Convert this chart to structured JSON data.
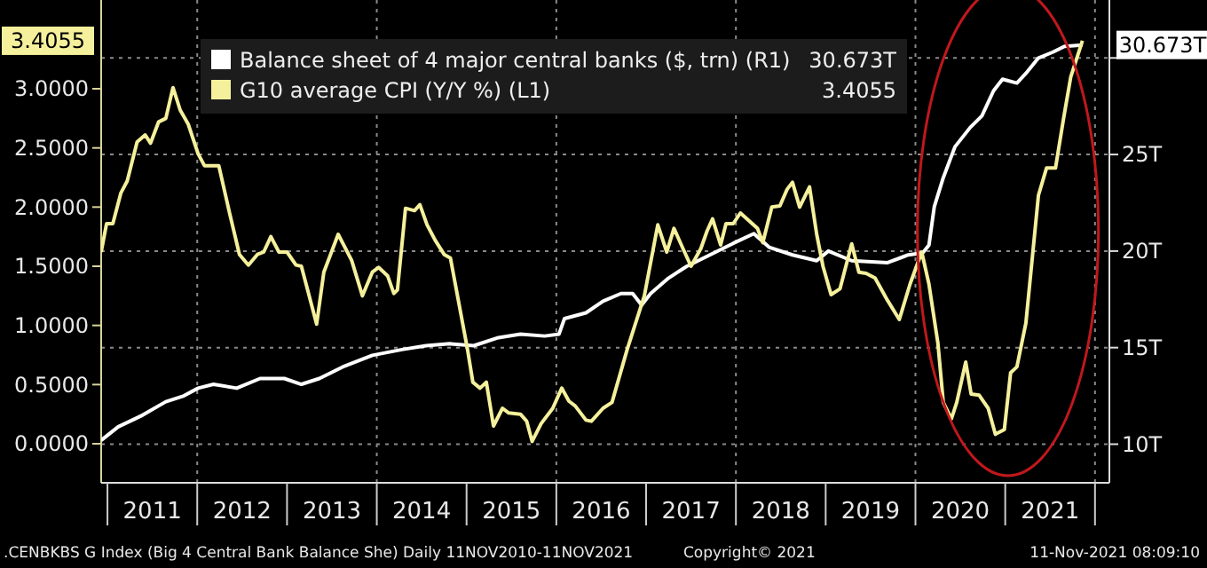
{
  "chart_data": {
    "type": "line",
    "xlim": [
      2010.93,
      2022.16
    ],
    "xticks": [
      {
        "value": 2011,
        "label": null
      },
      {
        "value": 2011.5,
        "label": "2011"
      },
      {
        "value": 2012,
        "label": null
      },
      {
        "value": 2012.5,
        "label": "2012"
      },
      {
        "value": 2013,
        "label": null
      },
      {
        "value": 2013.5,
        "label": "2013"
      },
      {
        "value": 2014,
        "label": null
      },
      {
        "value": 2014.5,
        "label": "2014"
      },
      {
        "value": 2015,
        "label": null
      },
      {
        "value": 2015.5,
        "label": "2015"
      },
      {
        "value": 2016,
        "label": null
      },
      {
        "value": 2016.5,
        "label": "2016"
      },
      {
        "value": 2017,
        "label": null
      },
      {
        "value": 2017.5,
        "label": "2017"
      },
      {
        "value": 2018,
        "label": null
      },
      {
        "value": 2018.5,
        "label": "2018"
      },
      {
        "value": 2019,
        "label": null
      },
      {
        "value": 2019.5,
        "label": "2019"
      },
      {
        "value": 2020,
        "label": null
      },
      {
        "value": 2020.5,
        "label": "2020"
      },
      {
        "value": 2021,
        "label": null
      },
      {
        "value": 2021.5,
        "label": "2021"
      },
      {
        "value": 2022,
        "label": null
      }
    ],
    "ylim": [
      -0.33,
      3.75
    ],
    "yticks": [
      {
        "value": 0,
        "label": "0.0000"
      },
      {
        "value": 0.5,
        "label": "0.5000"
      },
      {
        "value": 1,
        "label": "1.0000"
      },
      {
        "value": 1.5,
        "label": "1.5000"
      },
      {
        "value": 2,
        "label": "2.0000"
      },
      {
        "value": 2.5,
        "label": "2.5000"
      },
      {
        "value": 3,
        "label": "3.0000"
      }
    ],
    "y2lim": [
      8,
      33
    ],
    "y2ticks": [
      {
        "value": 10,
        "label": "10T"
      },
      {
        "value": 15,
        "label": "15T"
      },
      {
        "value": 20,
        "label": "20T"
      },
      {
        "value": 25,
        "label": "25T"
      },
      {
        "value": 30,
        "label": null
      }
    ],
    "grid": true,
    "legend": "top left",
    "series": [
      {
        "name": "Balance sheet of 4 major central banks ($, trn) (R1)",
        "color": "#ffffff",
        "axis": "y2",
        "x": [
          2010.93,
          2011.12,
          2011.39,
          2011.65,
          2011.85,
          2012.01,
          2012.18,
          2012.44,
          2012.7,
          2012.97,
          2013.16,
          2013.36,
          2013.62,
          2013.95,
          2014.28,
          2014.55,
          2014.81,
          2015.08,
          2015.34,
          2015.6,
          2015.87,
          2016.03,
          2016.09,
          2016.33,
          2016.52,
          2016.72,
          2016.85,
          2016.95,
          2017.05,
          2017.25,
          2017.45,
          2017.71,
          2017.97,
          2018.2,
          2018.37,
          2018.63,
          2018.9,
          2019.03,
          2019.29,
          2019.69,
          2019.92,
          2020.08,
          2020.15,
          2020.21,
          2020.31,
          2020.44,
          2020.61,
          2020.74,
          2020.87,
          2020.97,
          2021.13,
          2021.23,
          2021.37,
          2021.53,
          2021.66,
          2021.86
        ],
        "values": [
          10.2,
          10.9,
          11.5,
          12.2,
          12.5,
          12.9,
          13.1,
          12.9,
          13.4,
          13.4,
          13.1,
          13.4,
          14,
          14.6,
          14.9,
          15.1,
          15.2,
          15.1,
          15.5,
          15.7,
          15.6,
          15.7,
          16.5,
          16.8,
          17.4,
          17.8,
          17.8,
          17.2,
          17.8,
          18.6,
          19.2,
          19.8,
          20.4,
          20.9,
          20.2,
          19.8,
          19.5,
          20,
          19.5,
          19.4,
          19.8,
          19.9,
          20.3,
          22.3,
          23.8,
          25.4,
          26.4,
          27,
          28.3,
          28.9,
          28.7,
          29.2,
          30,
          30.3,
          30.6,
          30.673
        ]
      },
      {
        "name": "G10 average CPI (Y/Y %) (L1)",
        "color": "#f5f09b",
        "x": [
          2010.93,
          2010.99,
          2011.06,
          2011.15,
          2011.22,
          2011.33,
          2011.42,
          2011.48,
          2011.57,
          2011.65,
          2011.73,
          2011.81,
          2011.9,
          2012.01,
          2012.08,
          2012.24,
          2012.36,
          2012.47,
          2012.57,
          2012.67,
          2012.74,
          2012.82,
          2012.91,
          2013.0,
          2013.1,
          2013.16,
          2013.33,
          2013.41,
          2013.57,
          2013.72,
          2013.84,
          2013.95,
          2014.02,
          2014.12,
          2014.19,
          2014.23,
          2014.32,
          2014.42,
          2014.48,
          2014.56,
          2014.65,
          2014.75,
          2014.82,
          2015.01,
          2015.07,
          2015.15,
          2015.22,
          2015.3,
          2015.4,
          2015.47,
          2015.6,
          2015.67,
          2015.73,
          2015.83,
          2015.96,
          2016.06,
          2016.14,
          2016.21,
          2016.33,
          2016.39,
          2016.52,
          2016.62,
          2016.79,
          2016.98,
          2017.13,
          2017.23,
          2017.31,
          2017.41,
          2017.5,
          2017.61,
          2017.68,
          2017.74,
          2017.83,
          2017.89,
          2017.97,
          2018.05,
          2018.24,
          2018.3,
          2018.4,
          2018.49,
          2018.57,
          2018.63,
          2018.71,
          2018.82,
          2018.9,
          2018.97,
          2019.06,
          2019.16,
          2019.29,
          2019.37,
          2019.45,
          2019.55,
          2019.69,
          2019.82,
          2019.94,
          2020.07,
          2020.15,
          2020.25,
          2020.31,
          2020.4,
          2020.46,
          2020.56,
          2020.62,
          2020.71,
          2020.81,
          2020.89,
          2020.99,
          2021.06,
          2021.13,
          2021.23,
          2021.37,
          2021.46,
          2021.56,
          2021.65,
          2021.73,
          2021.86
        ],
        "values": [
          1.62,
          1.86,
          1.86,
          2.12,
          2.22,
          2.55,
          2.61,
          2.54,
          2.72,
          2.75,
          3.01,
          2.82,
          2.7,
          2.45,
          2.35,
          2.35,
          1.95,
          1.6,
          1.51,
          1.6,
          1.62,
          1.75,
          1.62,
          1.62,
          1.51,
          1.5,
          1.01,
          1.45,
          1.77,
          1.55,
          1.25,
          1.45,
          1.49,
          1.42,
          1.27,
          1.3,
          1.99,
          1.97,
          2.02,
          1.85,
          1.72,
          1.6,
          1.57,
          0.8,
          0.52,
          0.47,
          0.52,
          0.15,
          0.3,
          0.26,
          0.25,
          0.19,
          0.02,
          0.17,
          0.3,
          0.47,
          0.36,
          0.32,
          0.2,
          0.19,
          0.3,
          0.35,
          0.8,
          1.25,
          1.85,
          1.62,
          1.82,
          1.65,
          1.5,
          1.65,
          1.8,
          1.9,
          1.68,
          1.86,
          1.86,
          1.95,
          1.82,
          1.7,
          2.0,
          2.01,
          2.15,
          2.21,
          2.0,
          2.17,
          1.77,
          1.5,
          1.26,
          1.31,
          1.69,
          1.45,
          1.44,
          1.4,
          1.21,
          1.05,
          1.35,
          1.62,
          1.35,
          0.85,
          0.35,
          0.21,
          0.35,
          0.69,
          0.42,
          0.41,
          0.3,
          0.08,
          0.12,
          0.6,
          0.65,
          1.02,
          2.1,
          2.33,
          2.33,
          2.75,
          3.1,
          3.4055
        ]
      }
    ],
    "annotations": [
      "30.673T",
      "3.4055",
      "30.673T",
      "3.4055",
      ".CENBKBS G Index (Big 4 Central Bank Balance She)  Daily 11NOV2010-11NOV2021",
      "Copyright© 2021",
      "11-Nov-2021 08:09:10"
    ]
  }
}
